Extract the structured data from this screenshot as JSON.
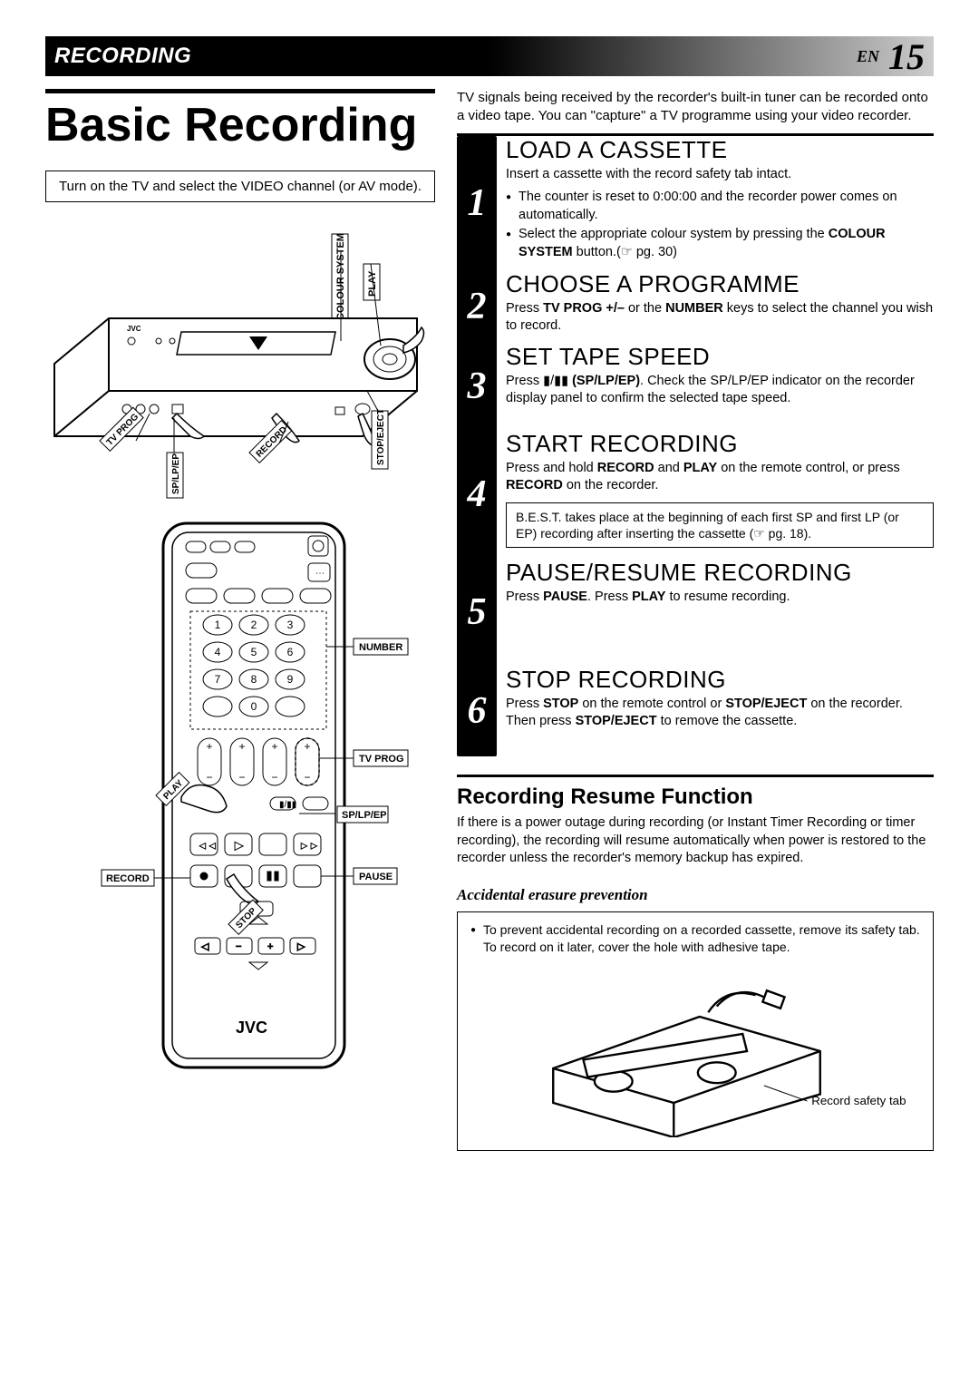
{
  "header": {
    "section": "RECORDING",
    "lang": "EN",
    "page": "15"
  },
  "title": "Basic Recording",
  "intro_box": "Turn on the TV and select the VIDEO channel (or AV mode).",
  "intro_text": "TV signals being received by the recorder's built-in tuner can be recorded onto a video tape. You can \"capture\" a TV programme using your video recorder.",
  "steps": [
    {
      "num": "1",
      "title": "LOAD A CASSETTE",
      "lead": "Insert a cassette with the record safety tab intact.",
      "bullets": [
        "The counter is reset to 0:00:00 and the recorder power comes on automatically.",
        "Select the appropriate colour system by pressing the COLOUR SYSTEM button.(☞ pg. 30)"
      ]
    },
    {
      "num": "2",
      "title": "CHOOSE A PROGRAMME",
      "body": "Press TV PROG +/– or the NUMBER keys to select the channel you wish to record."
    },
    {
      "num": "3",
      "title": "SET TAPE SPEED",
      "body": "Press ▮/▮▮ (SP/LP/EP). Check the SP/LP/EP indicator on the recorder display panel to confirm the selected tape speed."
    },
    {
      "num": "4",
      "title": "START RECORDING",
      "body": "Press and hold RECORD and PLAY on the remote control, or press RECORD on the recorder.",
      "note": "B.E.S.T. takes place at the beginning of each first SP and first LP (or EP) recording after inserting the cassette (☞ pg. 18)."
    },
    {
      "num": "5",
      "title": "PAUSE/RESUME RECORDING",
      "body": "Press PAUSE. Press PLAY to resume recording."
    },
    {
      "num": "6",
      "title": "STOP RECORDING",
      "body": "Press STOP on the remote control or STOP/EJECT on the recorder. Then press STOP/EJECT to remove the cassette."
    }
  ],
  "resume": {
    "title": "Recording Resume Function",
    "body": "If there is a power outage during recording (or Instant Timer Recording or timer recording), the recording will resume automatically when power is restored to the recorder unless the recorder's memory backup has expired."
  },
  "prevention": {
    "heading": "Accidental erasure prevention",
    "body": "To prevent accidental recording on a recorded cassette, remove its safety tab. To record on it later, cover the hole with adhesive tape.",
    "caption": "Record safety tab"
  },
  "vcr_labels": {
    "colour_system": "COLOUR SYSTEM",
    "play": "PLAY",
    "stop_eject": "STOP/EJECT",
    "record": "RECORD",
    "sp_lp_ep": "SP/LP/EP",
    "tv_prog": "TV PROG",
    "brand": "JVC"
  },
  "remote_labels": {
    "number": "NUMBER",
    "tv_prog": "TV PROG",
    "sp_lp_ep": "SP/LP/EP",
    "pause": "PAUSE",
    "record": "RECORD",
    "play": "PLAY",
    "stop": "STOP",
    "brand": "JVC"
  },
  "step_heights": [
    148,
    80,
    96,
    142,
    118,
    100
  ]
}
